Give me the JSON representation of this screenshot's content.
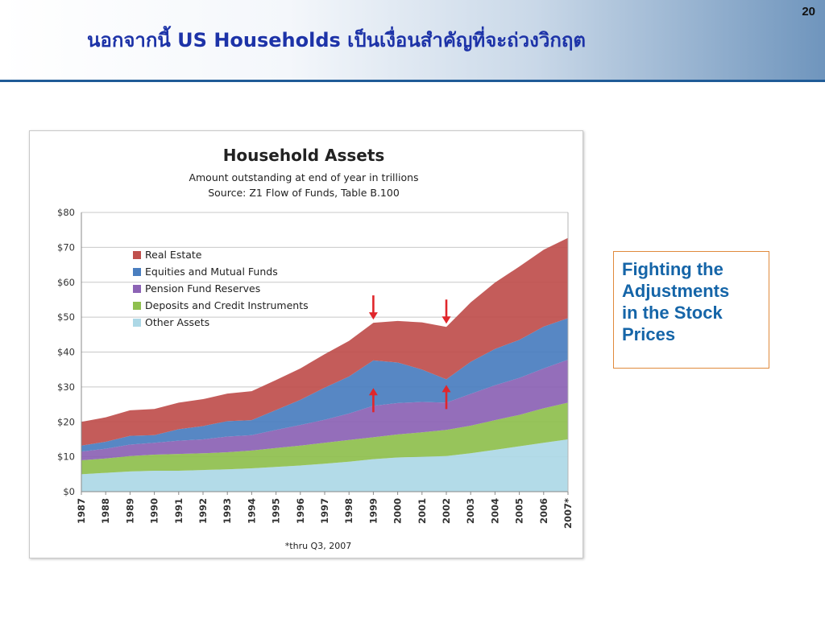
{
  "slide": {
    "title": "นอกจากนี้ US Households เป็นเงื่อนสำคัญที่จะถ่วงวิกฤต",
    "page_number": "20",
    "callout": [
      "Fighting the",
      "Adjustments",
      "in the Stock",
      "Prices"
    ]
  },
  "chart_data": {
    "type": "area",
    "stacked": true,
    "title": "Household Assets",
    "subtitle": [
      "Amount outstanding at end of year in trillions",
      "Source: Z1 Flow of Funds, Table B.100"
    ],
    "footnote": "*thru Q3, 2007",
    "x": [
      1987,
      1988,
      1989,
      1990,
      1991,
      1992,
      1993,
      1994,
      1995,
      1996,
      1997,
      1998,
      1999,
      2000,
      2001,
      2002,
      2003,
      2004,
      2005,
      2006,
      2007
    ],
    "x_tick_labels": [
      "1987",
      "1988",
      "1989",
      "1990",
      "1991",
      "1992",
      "1993",
      "1994",
      "1995",
      "1996",
      "1997",
      "1998",
      "1999",
      "2000",
      "2001",
      "2002",
      "2003",
      "2004",
      "2005",
      "2006",
      "2007*"
    ],
    "ylim": [
      0,
      80
    ],
    "y_ticks": [
      0,
      10,
      20,
      30,
      40,
      50,
      60,
      70,
      80
    ],
    "y_tick_labels": [
      "$0",
      "$10",
      "$20",
      "$30",
      "$40",
      "$50",
      "$60",
      "$70",
      "$80"
    ],
    "grid": true,
    "legend_position": "top-left",
    "series": [
      {
        "name": "Other Assets",
        "color": "#add8e6",
        "values": [
          5.0,
          5.4,
          5.8,
          6.0,
          6.0,
          6.2,
          6.4,
          6.7,
          7.1,
          7.5,
          8.0,
          8.6,
          9.3,
          9.8,
          10.0,
          10.2,
          11.0,
          12.0,
          13.0,
          14.0,
          15.0
        ]
      },
      {
        "name": "Deposits and Credit Instruments",
        "color": "#8fc04f",
        "values": [
          4.0,
          4.1,
          4.4,
          4.6,
          4.8,
          4.8,
          4.9,
          5.1,
          5.4,
          5.7,
          6.0,
          6.2,
          6.3,
          6.6,
          7.0,
          7.5,
          7.9,
          8.5,
          9.0,
          9.9,
          10.5
        ]
      },
      {
        "name": "Pension Fund Reserves",
        "color": "#8c63b5",
        "values": [
          2.5,
          2.8,
          3.3,
          3.4,
          3.8,
          4.0,
          4.5,
          4.4,
          5.2,
          5.9,
          6.6,
          7.6,
          9.0,
          9.0,
          8.7,
          7.8,
          9.1,
          10.0,
          10.6,
          11.4,
          12.3
        ]
      },
      {
        "name": "Equities and Mutual Funds",
        "color": "#4a7ebf",
        "values": [
          1.7,
          2.0,
          2.5,
          2.2,
          3.3,
          3.8,
          4.4,
          4.3,
          5.7,
          7.2,
          9.2,
          10.6,
          13.0,
          11.6,
          9.3,
          6.7,
          9.2,
          10.4,
          10.9,
          12.0,
          11.9
        ]
      },
      {
        "name": "Real Estate",
        "color": "#c0504d",
        "values": [
          6.8,
          7.0,
          7.3,
          7.5,
          7.6,
          7.7,
          7.9,
          8.3,
          8.6,
          9.0,
          9.6,
          10.2,
          10.8,
          11.9,
          13.5,
          15.0,
          17.0,
          19.0,
          21.0,
          22.0,
          23.0
        ]
      }
    ],
    "legend_order": [
      "Real Estate",
      "Equities and Mutual Funds",
      "Pension Fund Reserves",
      "Deposits and Credit Instruments",
      "Other Assets"
    ],
    "annotations": [
      {
        "type": "arrow-down",
        "x": 1999,
        "label": ""
      },
      {
        "type": "arrow-down",
        "x": 2002,
        "label": ""
      },
      {
        "type": "arrow-up",
        "x": 1999,
        "label": ""
      },
      {
        "type": "arrow-up",
        "x": 2002,
        "label": ""
      }
    ]
  }
}
